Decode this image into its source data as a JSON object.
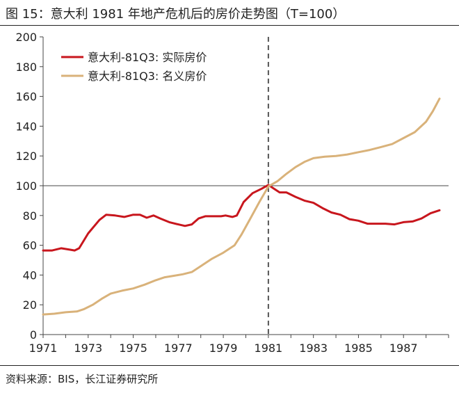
{
  "title": "图 15：意大利 1981 年地产危机后的房价走势图（T=100）",
  "source": "资料来源：BIS，长江证券研究所",
  "colors": {
    "real": "#C8161D",
    "nominal": "#D9B27A",
    "axis": "#444444",
    "marker": "#555555"
  },
  "chart_data": {
    "type": "line",
    "title": "图 15：意大利 1981 年地产危机后的房价走势图（T=100）",
    "xlabel": "",
    "ylabel": "",
    "xlim": [
      1971,
      1989
    ],
    "ylim": [
      0,
      200
    ],
    "yticks": [
      "0",
      "20",
      "40",
      "60",
      "80",
      "100",
      "120",
      "140",
      "160",
      "180",
      "200"
    ],
    "xticks": [
      "1971",
      "1973",
      "1975",
      "1977",
      "1979",
      "1981",
      "1983",
      "1985",
      "1987"
    ],
    "reference_line_y": 100,
    "marker_x": 1981,
    "grid": false,
    "legend_position": "top-left",
    "series": [
      {
        "name": "意大利-81Q3: 实际房价",
        "color": "#C8161D",
        "points": [
          [
            1971.0,
            56.5
          ],
          [
            1971.4,
            56.5
          ],
          [
            1971.8,
            58
          ],
          [
            1972.2,
            57
          ],
          [
            1972.4,
            56.5
          ],
          [
            1972.6,
            58
          ],
          [
            1973.0,
            68
          ],
          [
            1973.5,
            77
          ],
          [
            1973.8,
            80.5
          ],
          [
            1974.2,
            80
          ],
          [
            1974.6,
            79
          ],
          [
            1975.0,
            80.5
          ],
          [
            1975.3,
            80.5
          ],
          [
            1975.6,
            78.5
          ],
          [
            1975.9,
            80
          ],
          [
            1976.2,
            78
          ],
          [
            1976.6,
            75.5
          ],
          [
            1977.0,
            74
          ],
          [
            1977.3,
            73
          ],
          [
            1977.6,
            74
          ],
          [
            1977.9,
            78
          ],
          [
            1978.2,
            79.5
          ],
          [
            1978.6,
            79.5
          ],
          [
            1978.9,
            79.5
          ],
          [
            1979.1,
            80
          ],
          [
            1979.4,
            79
          ],
          [
            1979.6,
            80
          ],
          [
            1979.9,
            89
          ],
          [
            1980.3,
            95
          ],
          [
            1980.7,
            98
          ],
          [
            1981.0,
            100.5
          ],
          [
            1981.3,
            97.5
          ],
          [
            1981.5,
            95.5
          ],
          [
            1981.8,
            95.5
          ],
          [
            1982.2,
            92.5
          ],
          [
            1982.6,
            90
          ],
          [
            1983.0,
            88.5
          ],
          [
            1983.4,
            85
          ],
          [
            1983.8,
            82
          ],
          [
            1984.2,
            80.5
          ],
          [
            1984.6,
            77.5
          ],
          [
            1985.0,
            76.5
          ],
          [
            1985.4,
            74.5
          ],
          [
            1985.8,
            74.5
          ],
          [
            1986.2,
            74.5
          ],
          [
            1986.6,
            74
          ],
          [
            1987.0,
            75.5
          ],
          [
            1987.4,
            76
          ],
          [
            1987.8,
            78
          ],
          [
            1988.2,
            81.5
          ],
          [
            1988.6,
            83.5
          ]
        ]
      },
      {
        "name": "意大利-81Q3: 名义房价",
        "color": "#D9B27A",
        "points": [
          [
            1971.0,
            13.5
          ],
          [
            1971.5,
            14
          ],
          [
            1972.0,
            15
          ],
          [
            1972.5,
            15.5
          ],
          [
            1972.8,
            17
          ],
          [
            1973.2,
            20
          ],
          [
            1973.6,
            24
          ],
          [
            1974.0,
            27.5
          ],
          [
            1974.5,
            29.5
          ],
          [
            1975.0,
            31
          ],
          [
            1975.5,
            33.5
          ],
          [
            1976.0,
            36.5
          ],
          [
            1976.4,
            38.5
          ],
          [
            1976.8,
            39.5
          ],
          [
            1977.2,
            40.5
          ],
          [
            1977.6,
            42
          ],
          [
            1978.0,
            46
          ],
          [
            1978.5,
            51
          ],
          [
            1979.0,
            55
          ],
          [
            1979.5,
            60
          ],
          [
            1979.8,
            67
          ],
          [
            1980.2,
            78
          ],
          [
            1980.6,
            89
          ],
          [
            1981.0,
            99.5
          ],
          [
            1981.4,
            103
          ],
          [
            1981.8,
            108
          ],
          [
            1982.2,
            112.5
          ],
          [
            1982.6,
            116
          ],
          [
            1983.0,
            118.5
          ],
          [
            1983.5,
            119.5
          ],
          [
            1984.0,
            120
          ],
          [
            1984.5,
            121
          ],
          [
            1985.0,
            122.5
          ],
          [
            1985.5,
            124
          ],
          [
            1986.0,
            126
          ],
          [
            1986.5,
            128
          ],
          [
            1987.0,
            132
          ],
          [
            1987.5,
            136
          ],
          [
            1988.0,
            143
          ],
          [
            1988.3,
            150
          ],
          [
            1988.6,
            158.5
          ]
        ]
      }
    ]
  }
}
